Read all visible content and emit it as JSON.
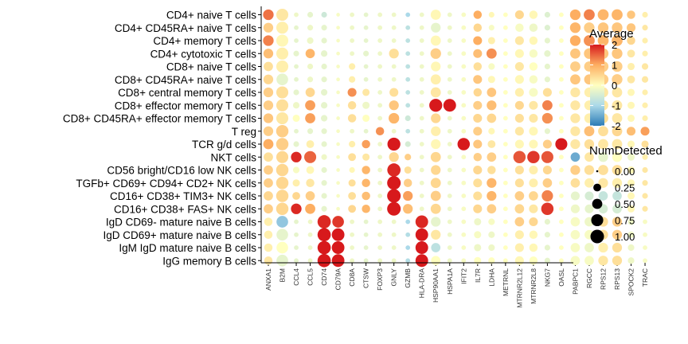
{
  "chart_data": {
    "type": "dotplot",
    "rows": [
      "CD4+ naive T cells",
      "CD4+ CD45RA+ naive T cells",
      "CD4+ memory T cells",
      "CD4+ cytotoxic T cells",
      "CD8+ naive T cells",
      "CD8+ CD45RA+ naive T cells",
      "CD8+ central memory T cells",
      "CD8+ effector memory T cells",
      "CD8+ CD45RA+ effector memory T cells",
      "T reg",
      "TCR g/d cells",
      "NKT cells",
      "CD56 bright/CD16 low NK cells",
      "TGFb+ CD69+ CD94+ CD2+ NK cells",
      "CD16+ CD38+ TIM3+ NK cells",
      "CD16+ CD38+ FAS+ NK cells",
      "IgD CD69- mature naive B cells",
      "IgD CD69+ mature naive B cells",
      "IgM IgD mature naive B cells",
      "IgG memory B cells"
    ],
    "genes": [
      "ANXA1",
      "B2M",
      "CCL4",
      "CCL5",
      "CD74",
      "CD79A",
      "CD8A",
      "CTSW",
      "FOXP3",
      "GNLY",
      "GZMB",
      "HLA-DRA",
      "HSP90AA1",
      "HSPA1A",
      "IFIT2",
      "IL7R",
      "LDHA",
      "METRNL",
      "MTRNR2L12",
      "MTRNR2L8",
      "NKG7",
      "OASL",
      "PABPC1",
      "RGCC",
      "RPS12",
      "RPS13",
      "SPOCK2",
      "TRAC"
    ],
    "color_legend": {
      "title": "Average",
      "ticks": [
        2,
        1,
        0,
        -1,
        -2
      ],
      "range": [
        -2,
        2
      ]
    },
    "size_legend": {
      "title": "NumDetected",
      "ticks": [
        "0.00",
        "0.25",
        "0.50",
        "0.75",
        "1.00"
      ],
      "values": [
        0,
        0.25,
        0.5,
        0.75,
        1
      ]
    },
    "avg": [
      [
        1.4,
        0.3,
        -0.2,
        -0.3,
        -0.6,
        -0.1,
        -0.2,
        -0.3,
        -0.2,
        -0.2,
        -1.0,
        -0.2,
        0.1,
        -0.2,
        -0.1,
        1.0,
        0.1,
        0.0,
        0.5,
        0.1,
        -0.4,
        0.0,
        1.0,
        1.3,
        0.9,
        0.9,
        0.7,
        0.2
      ],
      [
        0.6,
        0.2,
        -0.3,
        -0.2,
        -0.3,
        -0.1,
        -0.2,
        -0.3,
        -0.2,
        -0.2,
        -0.8,
        -0.2,
        -0.3,
        -0.2,
        -0.1,
        0.5,
        -0.1,
        0.0,
        -0.1,
        -0.2,
        -0.4,
        0.0,
        0.9,
        0.6,
        0.7,
        0.7,
        0.7,
        0.3
      ],
      [
        1.3,
        0.1,
        -0.3,
        -0.2,
        -0.3,
        -0.1,
        -0.2,
        -0.3,
        -0.2,
        -0.2,
        -0.8,
        -0.2,
        0.1,
        -0.2,
        -0.1,
        1.0,
        0.2,
        0.0,
        0.3,
        0.1,
        -0.3,
        0.0,
        1.0,
        1.2,
        0.9,
        0.9,
        0.5,
        0.2
      ],
      [
        0.8,
        0.2,
        -0.3,
        0.9,
        -0.3,
        -0.1,
        -0.2,
        -0.3,
        -0.2,
        0.4,
        -0.8,
        -0.2,
        0.6,
        -0.2,
        -0.1,
        0.8,
        1.2,
        0.0,
        0.1,
        -0.1,
        -0.3,
        0.0,
        0.7,
        0.7,
        0.7,
        0.7,
        0.3,
        0.2
      ],
      [
        0.4,
        0.2,
        -0.3,
        -0.2,
        -0.3,
        -0.1,
        0.2,
        -0.3,
        -0.2,
        -0.2,
        -0.8,
        -0.2,
        0.1,
        -0.2,
        -0.1,
        0.4,
        -0.1,
        0.0,
        0.3,
        0.0,
        -0.3,
        0.0,
        0.6,
        0.6,
        0.6,
        0.6,
        0.2,
        0.3
      ],
      [
        0.5,
        -0.3,
        -0.3,
        -0.2,
        -0.3,
        -0.1,
        0.2,
        -0.3,
        -0.2,
        -0.2,
        -0.8,
        -0.2,
        0.2,
        -0.2,
        -0.1,
        0.7,
        0.1,
        0.0,
        0.1,
        -0.1,
        -0.3,
        0.0,
        0.7,
        0.7,
        0.6,
        0.6,
        0.3,
        0.3
      ],
      [
        0.6,
        0.4,
        -0.3,
        0.5,
        -0.3,
        -0.1,
        1.2,
        0.3,
        -0.2,
        0.4,
        -0.8,
        -0.2,
        0.3,
        -0.2,
        -0.1,
        0.5,
        0.7,
        0.0,
        0.2,
        -0.1,
        0.4,
        0.0,
        0.3,
        0.2,
        0.3,
        0.3,
        0.1,
        0.2
      ],
      [
        0.6,
        0.4,
        -0.2,
        1.1,
        -0.3,
        -0.1,
        0.4,
        -0.2,
        -0.2,
        0.7,
        -0.8,
        -0.2,
        2.0,
        2.0,
        -0.1,
        0.6,
        0.8,
        0.0,
        0.5,
        0.3,
        1.3,
        0.0,
        0.3,
        0.2,
        0.3,
        0.3,
        0.1,
        0.2
      ],
      [
        0.7,
        0.3,
        0.0,
        1.1,
        -0.3,
        -0.1,
        0.4,
        0.0,
        -0.2,
        0.9,
        -0.6,
        -0.2,
        0.5,
        -0.2,
        -0.1,
        0.5,
        0.5,
        0.0,
        0.4,
        0.3,
        1.2,
        0.0,
        0.3,
        0.2,
        0.4,
        0.3,
        0.1,
        0.2
      ],
      [
        0.6,
        0.6,
        -0.3,
        -0.3,
        -0.3,
        -0.1,
        -0.2,
        -0.3,
        1.2,
        -0.2,
        -0.8,
        -0.2,
        0.2,
        -0.2,
        -0.1,
        0.6,
        0.1,
        0.0,
        0.3,
        0.1,
        -0.3,
        0.0,
        0.3,
        0.8,
        0.4,
        0.5,
        0.8,
        1.1
      ],
      [
        1.0,
        0.6,
        -0.3,
        0.2,
        -0.3,
        -0.1,
        0.2,
        1.1,
        -0.2,
        2.0,
        -0.5,
        -0.2,
        0.1,
        -0.2,
        2.0,
        0.7,
        0.3,
        0.0,
        0.1,
        0.1,
        0.6,
        2.0,
        0.3,
        0.4,
        0.3,
        0.3,
        0.1,
        0.4
      ],
      [
        0.4,
        0.5,
        1.9,
        1.5,
        -0.2,
        -0.1,
        0.4,
        0.3,
        -0.2,
        0.5,
        0.6,
        -0.2,
        0.5,
        -0.2,
        -0.1,
        0.6,
        0.6,
        0.0,
        1.6,
        1.8,
        1.6,
        0.0,
        -1.5,
        0.3,
        -0.3,
        0.0,
        -0.2,
        0.2
      ],
      [
        0.6,
        0.5,
        -0.1,
        0.1,
        -0.3,
        -0.1,
        0.1,
        0.9,
        -0.2,
        1.9,
        0.4,
        -0.2,
        0.5,
        -0.2,
        -0.1,
        0.5,
        0.4,
        0.0,
        0.4,
        0.2,
        0.5,
        0.0,
        0.6,
        0.4,
        0.4,
        0.4,
        0.1,
        0.3
      ],
      [
        0.6,
        0.5,
        0.2,
        0.3,
        -0.3,
        -0.1,
        0.4,
        0.9,
        -0.2,
        2.0,
        0.6,
        -0.2,
        0.5,
        -0.2,
        -0.1,
        0.4,
        0.9,
        0.0,
        0.4,
        0.2,
        0.6,
        0.0,
        0.4,
        0.2,
        0.3,
        0.2,
        0.1,
        0.3
      ],
      [
        0.5,
        0.5,
        0.5,
        0.6,
        -0.3,
        -0.1,
        0.4,
        0.8,
        -0.2,
        2.0,
        1.1,
        -0.2,
        0.6,
        -0.2,
        -0.1,
        0.4,
        0.9,
        0.0,
        0.6,
        0.5,
        1.3,
        0.0,
        -0.3,
        -0.5,
        -0.7,
        -0.7,
        0.1,
        0.3
      ],
      [
        0.6,
        0.5,
        1.9,
        1.0,
        -0.3,
        -0.1,
        0.5,
        0.9,
        -0.2,
        2.0,
        0.8,
        -0.2,
        0.5,
        -0.2,
        -0.1,
        0.5,
        0.6,
        0.0,
        0.5,
        0.3,
        1.8,
        0.0,
        -0.2,
        -0.3,
        -0.5,
        -0.5,
        0.1,
        0.3
      ],
      [
        0.2,
        -1.2,
        -0.3,
        -0.2,
        1.9,
        1.8,
        -0.2,
        -0.3,
        -0.2,
        -0.2,
        -1.0,
        1.9,
        -0.3,
        -0.2,
        -0.1,
        -0.2,
        -0.1,
        0.0,
        0.6,
        0.5,
        -0.3,
        0.0,
        -0.1,
        -0.2,
        0.4,
        0.6,
        -0.2,
        -0.1
      ],
      [
        0.2,
        -0.3,
        -0.3,
        -0.2,
        2.0,
        2.0,
        -0.2,
        -0.3,
        -0.2,
        -0.2,
        -0.9,
        2.0,
        0.3,
        -0.2,
        -0.1,
        -0.1,
        -0.2,
        0.0,
        0.2,
        0.1,
        -0.3,
        0.0,
        -0.1,
        -0.1,
        0.4,
        0.6,
        -0.2,
        -0.1
      ],
      [
        0.2,
        0.0,
        -0.3,
        -0.2,
        2.0,
        2.0,
        -0.2,
        -0.3,
        -0.2,
        -0.2,
        -1.0,
        2.0,
        -0.8,
        -0.2,
        -0.1,
        -0.2,
        -0.2,
        0.0,
        0.2,
        0.1,
        -0.3,
        0.0,
        -0.1,
        -0.2,
        0.2,
        0.4,
        -0.2,
        -0.1
      ],
      [
        0.3,
        -0.3,
        -0.3,
        -0.2,
        2.0,
        2.0,
        -0.2,
        -0.3,
        -0.2,
        -0.2,
        -0.9,
        2.0,
        0.0,
        -0.2,
        -0.1,
        0.0,
        0.0,
        0.0,
        0.1,
        0.0,
        -0.3,
        0.0,
        -0.1,
        -0.1,
        0.3,
        0.4,
        -0.2,
        -0.1
      ]
    ],
    "pct": [
      [
        0.55,
        0.75,
        0.05,
        0.1,
        0.1,
        0.02,
        0.05,
        0.05,
        0.05,
        0.05,
        0.05,
        0.05,
        0.5,
        0.05,
        0.05,
        0.3,
        0.1,
        0.05,
        0.35,
        0.3,
        0.1,
        0.05,
        0.55,
        0.6,
        0.6,
        0.6,
        0.3,
        0.1
      ],
      [
        0.45,
        0.75,
        0.05,
        0.1,
        0.1,
        0.02,
        0.05,
        0.05,
        0.05,
        0.05,
        0.05,
        0.05,
        0.45,
        0.05,
        0.05,
        0.3,
        0.1,
        0.05,
        0.3,
        0.3,
        0.1,
        0.05,
        0.55,
        0.55,
        0.55,
        0.55,
        0.35,
        0.1
      ],
      [
        0.55,
        0.75,
        0.05,
        0.15,
        0.1,
        0.02,
        0.05,
        0.05,
        0.05,
        0.05,
        0.05,
        0.05,
        0.5,
        0.05,
        0.05,
        0.35,
        0.2,
        0.05,
        0.35,
        0.3,
        0.1,
        0.05,
        0.55,
        0.6,
        0.6,
        0.6,
        0.3,
        0.1
      ],
      [
        0.45,
        0.75,
        0.1,
        0.4,
        0.15,
        0.02,
        0.05,
        0.1,
        0.05,
        0.45,
        0.05,
        0.05,
        0.55,
        0.05,
        0.05,
        0.35,
        0.5,
        0.05,
        0.35,
        0.3,
        0.15,
        0.05,
        0.5,
        0.55,
        0.55,
        0.55,
        0.25,
        0.1
      ],
      [
        0.4,
        0.75,
        0.05,
        0.1,
        0.1,
        0.02,
        0.15,
        0.05,
        0.05,
        0.05,
        0.05,
        0.05,
        0.45,
        0.05,
        0.05,
        0.3,
        0.15,
        0.05,
        0.35,
        0.3,
        0.1,
        0.05,
        0.5,
        0.5,
        0.55,
        0.55,
        0.2,
        0.15
      ],
      [
        0.45,
        0.7,
        0.05,
        0.1,
        0.1,
        0.02,
        0.15,
        0.05,
        0.05,
        0.05,
        0.05,
        0.05,
        0.5,
        0.05,
        0.05,
        0.35,
        0.2,
        0.05,
        0.35,
        0.3,
        0.1,
        0.05,
        0.5,
        0.5,
        0.55,
        0.55,
        0.25,
        0.15
      ],
      [
        0.45,
        0.75,
        0.1,
        0.4,
        0.15,
        0.02,
        0.35,
        0.2,
        0.05,
        0.35,
        0.05,
        0.05,
        0.5,
        0.05,
        0.05,
        0.3,
        0.4,
        0.05,
        0.35,
        0.35,
        0.35,
        0.05,
        0.45,
        0.45,
        0.5,
        0.5,
        0.2,
        0.1
      ],
      [
        0.45,
        0.75,
        0.15,
        0.5,
        0.15,
        0.02,
        0.3,
        0.2,
        0.05,
        0.45,
        0.05,
        0.05,
        0.9,
        0.85,
        0.05,
        0.35,
        0.45,
        0.05,
        0.35,
        0.35,
        0.5,
        0.05,
        0.45,
        0.45,
        0.5,
        0.5,
        0.2,
        0.1
      ],
      [
        0.45,
        0.75,
        0.2,
        0.5,
        0.15,
        0.02,
        0.3,
        0.2,
        0.05,
        0.55,
        0.1,
        0.05,
        0.45,
        0.05,
        0.05,
        0.35,
        0.4,
        0.05,
        0.35,
        0.35,
        0.55,
        0.05,
        0.45,
        0.45,
        0.5,
        0.5,
        0.2,
        0.1
      ],
      [
        0.45,
        0.8,
        0.05,
        0.1,
        0.1,
        0.02,
        0.05,
        0.05,
        0.3,
        0.05,
        0.05,
        0.05,
        0.45,
        0.05,
        0.05,
        0.35,
        0.15,
        0.05,
        0.35,
        0.35,
        0.1,
        0.05,
        0.45,
        0.5,
        0.5,
        0.5,
        0.35,
        0.35
      ],
      [
        0.5,
        0.8,
        0.1,
        0.25,
        0.1,
        0.02,
        0.15,
        0.3,
        0.05,
        0.9,
        0.1,
        0.05,
        0.45,
        0.05,
        0.8,
        0.35,
        0.25,
        0.05,
        0.35,
        0.35,
        0.35,
        0.75,
        0.45,
        0.45,
        0.5,
        0.5,
        0.2,
        0.2
      ],
      [
        0.4,
        0.75,
        0.55,
        0.75,
        0.1,
        0.02,
        0.25,
        0.2,
        0.05,
        0.45,
        0.15,
        0.05,
        0.5,
        0.05,
        0.05,
        0.3,
        0.4,
        0.05,
        0.8,
        0.8,
        0.75,
        0.05,
        0.4,
        0.4,
        0.45,
        0.45,
        0.2,
        0.1
      ],
      [
        0.4,
        0.8,
        0.15,
        0.25,
        0.1,
        0.02,
        0.1,
        0.3,
        0.05,
        0.95,
        0.2,
        0.05,
        0.45,
        0.05,
        0.05,
        0.35,
        0.3,
        0.05,
        0.35,
        0.35,
        0.35,
        0.05,
        0.45,
        0.45,
        0.5,
        0.5,
        0.2,
        0.1
      ],
      [
        0.4,
        0.8,
        0.2,
        0.3,
        0.1,
        0.02,
        0.2,
        0.3,
        0.05,
        1.0,
        0.3,
        0.05,
        0.5,
        0.05,
        0.05,
        0.35,
        0.45,
        0.05,
        0.35,
        0.35,
        0.4,
        0.05,
        0.4,
        0.4,
        0.45,
        0.45,
        0.2,
        0.1
      ],
      [
        0.4,
        0.8,
        0.25,
        0.4,
        0.1,
        0.02,
        0.25,
        0.3,
        0.05,
        1.0,
        0.45,
        0.05,
        0.5,
        0.05,
        0.05,
        0.35,
        0.45,
        0.05,
        0.4,
        0.4,
        0.65,
        0.05,
        0.35,
        0.35,
        0.4,
        0.4,
        0.2,
        0.1
      ],
      [
        0.4,
        0.8,
        0.55,
        0.5,
        0.1,
        0.02,
        0.25,
        0.3,
        0.05,
        1.0,
        0.45,
        0.05,
        0.5,
        0.05,
        0.05,
        0.35,
        0.4,
        0.05,
        0.4,
        0.35,
        0.8,
        0.05,
        0.35,
        0.35,
        0.4,
        0.4,
        0.2,
        0.1
      ],
      [
        0.3,
        0.7,
        0.05,
        0.05,
        0.95,
        0.7,
        0.05,
        0.05,
        0.05,
        0.05,
        0.05,
        0.85,
        0.45,
        0.05,
        0.05,
        0.2,
        0.15,
        0.05,
        0.4,
        0.35,
        0.1,
        0.05,
        0.4,
        0.4,
        0.45,
        0.45,
        0.15,
        0.05
      ],
      [
        0.3,
        0.7,
        0.05,
        0.05,
        0.95,
        0.85,
        0.05,
        0.05,
        0.05,
        0.05,
        0.05,
        0.85,
        0.45,
        0.05,
        0.05,
        0.2,
        0.15,
        0.05,
        0.35,
        0.3,
        0.1,
        0.05,
        0.4,
        0.4,
        0.45,
        0.45,
        0.15,
        0.05
      ],
      [
        0.3,
        0.7,
        0.05,
        0.05,
        0.95,
        0.85,
        0.05,
        0.05,
        0.05,
        0.05,
        0.05,
        0.85,
        0.4,
        0.05,
        0.05,
        0.2,
        0.15,
        0.05,
        0.35,
        0.3,
        0.1,
        0.05,
        0.4,
        0.4,
        0.45,
        0.45,
        0.15,
        0.05
      ],
      [
        0.3,
        0.7,
        0.05,
        0.05,
        0.95,
        0.85,
        0.05,
        0.05,
        0.05,
        0.05,
        0.05,
        0.85,
        0.4,
        0.05,
        0.05,
        0.2,
        0.15,
        0.05,
        0.35,
        0.3,
        0.1,
        0.05,
        0.4,
        0.4,
        0.45,
        0.45,
        0.15,
        0.05
      ]
    ]
  }
}
